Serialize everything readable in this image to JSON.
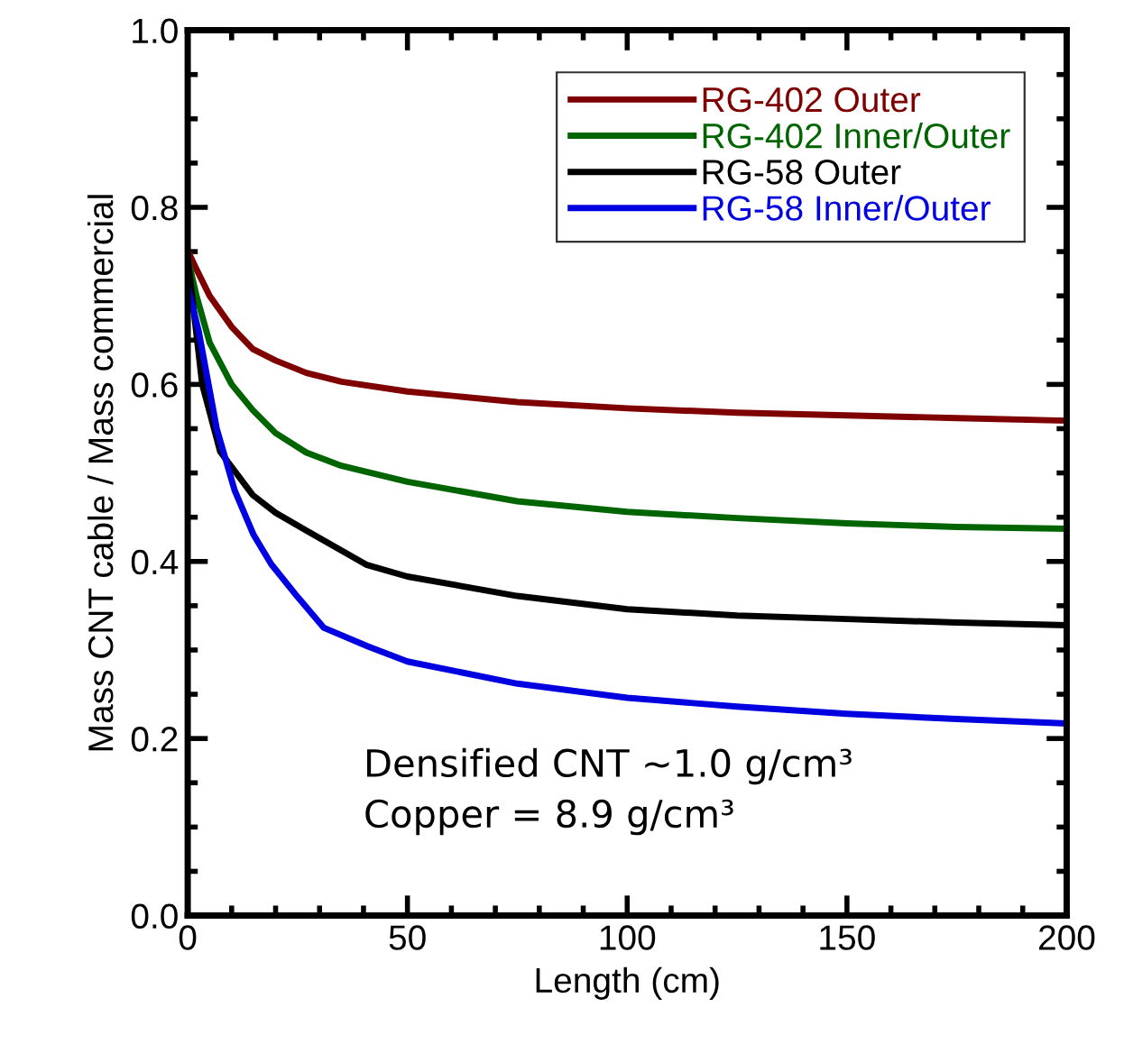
{
  "chart_data": {
    "type": "line",
    "xlabel": "Length (cm)",
    "ylabel": "Mass CNT cable / Mass commercial",
    "xlim": [
      0,
      200
    ],
    "xticks": [
      0,
      50,
      100,
      150,
      200
    ],
    "ylim": [
      0,
      1.0
    ],
    "yticks": [
      {
        "value": 0,
        "label": "0.0"
      },
      {
        "value": 0.2,
        "label": "0.2"
      },
      {
        "value": 0.4,
        "label": "0.4"
      },
      {
        "value": 0.6,
        "label": "0.6"
      },
      {
        "value": 0.8,
        "label": "0.8"
      },
      {
        "value": 1.0,
        "label": "1.0"
      }
    ],
    "grid": false,
    "legend": "top right",
    "marker": "none",
    "line_style": "solid",
    "annotations": [
      "Densified CNT ~1.0 g/cm³\nCopper = 8.9 g/cm³"
    ],
    "series": [
      {
        "name": "RG-402 Outer",
        "color": "#7f0000",
        "x": [
          0,
          2,
          5,
          10,
          14.8,
          20,
          27,
          35,
          50,
          75,
          100,
          125,
          150,
          175,
          200
        ],
        "values": [
          0.751,
          0.73,
          0.7,
          0.665,
          0.64,
          0.627,
          0.613,
          0.603,
          0.592,
          0.58,
          0.573,
          0.568,
          0.565,
          0.562,
          0.559
        ]
      },
      {
        "name": "RG-402 Inner/Outer",
        "color": "#006400",
        "x": [
          0,
          2,
          5,
          10,
          14.8,
          20,
          27,
          35,
          50,
          75,
          100,
          125,
          150,
          175,
          200
        ],
        "values": [
          0.743,
          0.7,
          0.647,
          0.6,
          0.571,
          0.545,
          0.523,
          0.508,
          0.49,
          0.468,
          0.456,
          0.449,
          0.443,
          0.439,
          0.437
        ]
      },
      {
        "name": "RG-58 Outer",
        "color": "#000000",
        "x": [
          0,
          3.3,
          7.4,
          14.8,
          20,
          27,
          40.8,
          50,
          75,
          100,
          125,
          150,
          175,
          200
        ],
        "values": [
          0.743,
          0.6,
          0.524,
          0.475,
          0.455,
          0.435,
          0.396,
          0.383,
          0.361,
          0.346,
          0.339,
          0.335,
          0.331,
          0.328
        ]
      },
      {
        "name": "RG-58 Inner/Outer",
        "color": "#0000e0",
        "x": [
          0,
          2.5,
          6.6,
          10.7,
          15,
          19,
          25,
          31,
          41,
          50,
          75,
          100,
          125,
          150,
          175,
          200
        ],
        "values": [
          0.71,
          0.66,
          0.55,
          0.48,
          0.43,
          0.397,
          0.36,
          0.325,
          0.304,
          0.287,
          0.262,
          0.246,
          0.236,
          0.228,
          0.222,
          0.217
        ]
      }
    ]
  }
}
